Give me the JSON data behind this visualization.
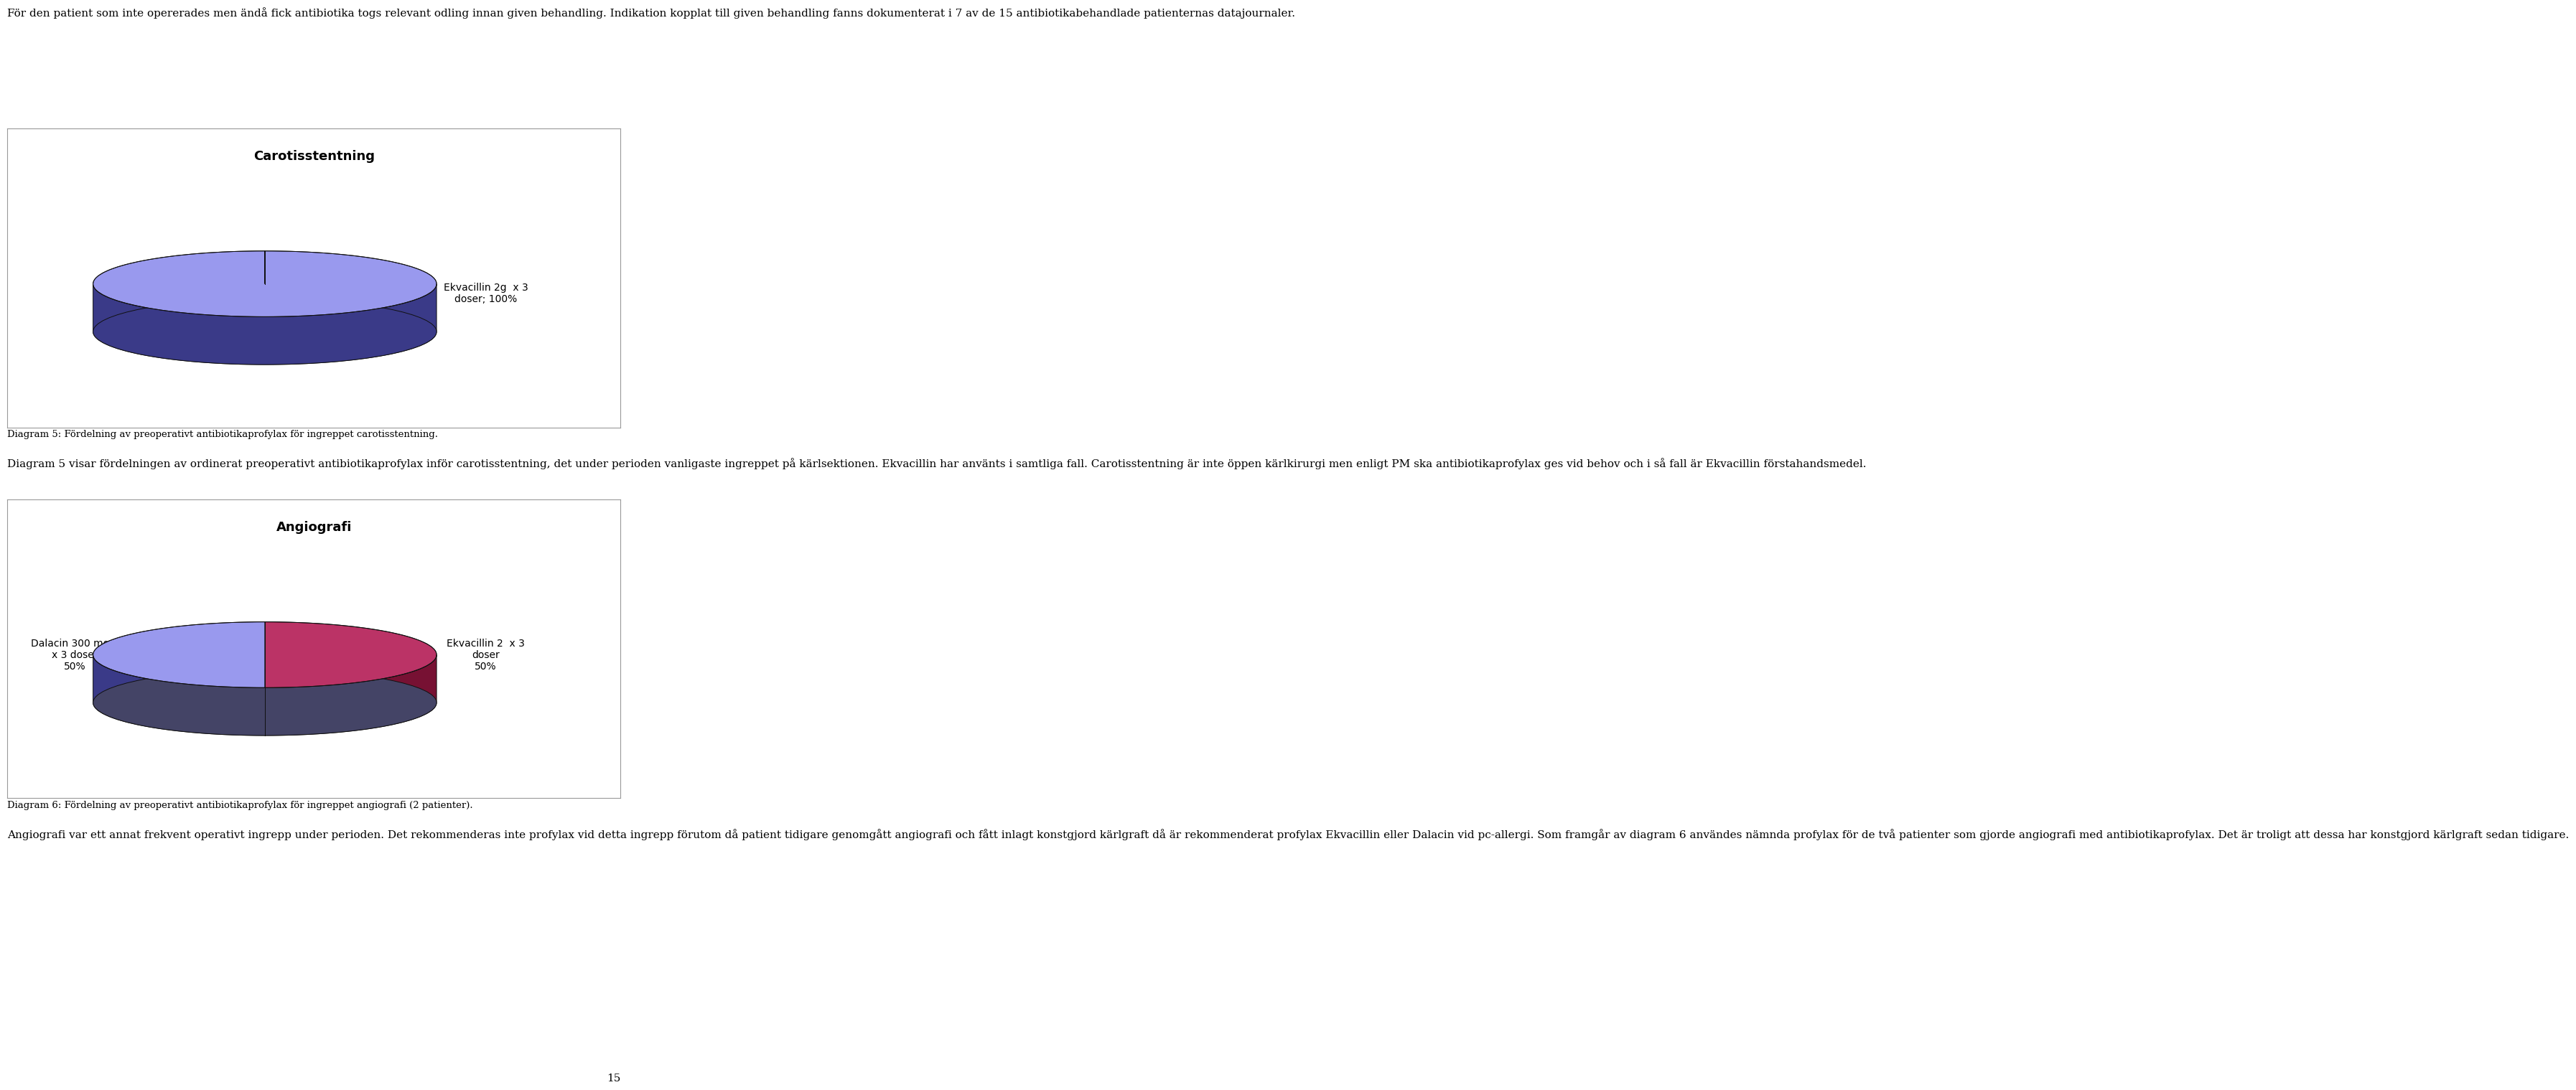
{
  "page_width": 9.6,
  "page_height": 15.43,
  "background_color": "#ffffff",
  "text_color": "#000000",
  "intro_text": "För den patient som inte opererades men ändå fick antibiotika togs relevant odling innan given behandling. Indikation kopplat till given behandling fanns dokumenterat i 7 av de 15 antibiotikabehandlade patienternas datajournaler.",
  "chart1_title": "Carotisstentning",
  "chart1_slices": [
    100
  ],
  "chart1_labels": [
    "Ekvacillin 2g  x 3\ndoser; 100%"
  ],
  "chart1_colors_top": [
    "#9999ee"
  ],
  "chart1_colors_side": [
    "#3a3a88"
  ],
  "chart1_caption": "Diagram 5: Fördelning av preoperativt antibiotikaprofylax för ingreppet carotisstentning.",
  "text2": "Diagram 5 visar fördelningen av ordinerat preoperativt antibiotikaprofylax inför carotisstentning, det under perioden vanligaste ingreppet på kärlsektionen. Ekvacillin har använts i samtliga fall. Carotisstentning är inte öppen kärlkirurgi men enligt PM ska antibiotikaprofylax ges vid behov och i så fall är Ekvacillin förstahandsmedel.",
  "chart2_title": "Angiografi",
  "chart2_slices": [
    50,
    50
  ],
  "chart2_labels": [
    "Dalacin 300 mg 1\nx 3 doser\n50%",
    "Ekvacillin 2  x 3\ndoser\n50%"
  ],
  "chart2_colors_top": [
    "#bb3366",
    "#9999ee"
  ],
  "chart2_colors_side": [
    "#771133",
    "#3a3a88"
  ],
  "chart2_caption": "Diagram 6: Fördelning av preoperativt antibiotikaprofylax för ingreppet angiografi (2 patienter).",
  "text3": "Angiografi var ett annat frekvent operativt ingrepp under perioden. Det rekommenderas inte profylax vid detta ingrepp förutom då patient tidigare genomgått angiografi och fått inlagt konstgjord kärlgraft då är rekommenderat profylax Ekvacillin eller Dalacin vid pc-allergi. Som framgår av diagram 6 användes nämnda profylax för de två patienter som gjorde angiografi med antibiotikaprofylax. Det är troligt att dessa har konstgjord kärlgraft sedan tidigare.",
  "page_number": "15",
  "font_size_body": 11,
  "font_size_caption": 9.5,
  "font_size_chart_title": 13,
  "font_size_label": 10,
  "font_size_page_num": 11
}
